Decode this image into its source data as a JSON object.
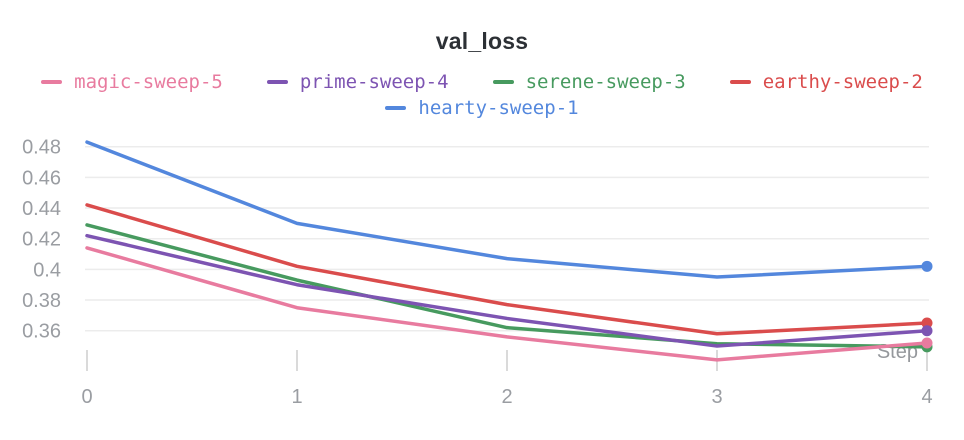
{
  "title": "val_loss",
  "colors": {
    "background": "#ffffff",
    "title_text": "#2c3035",
    "grid": "#ececec",
    "tick_mark": "#dadada",
    "axis_text": "#9a9da2",
    "axis_title_text": "#95989c",
    "pink": "#e87b9f",
    "purple": "#7d54b2",
    "green": "#479a5f",
    "red": "#da4c4c",
    "blue": "#5387dd"
  },
  "legend": {
    "rows": [
      [
        {
          "label": "magic-sweep-5",
          "color": "#e87b9f"
        },
        {
          "label": "prime-sweep-4",
          "color": "#7d54b2"
        },
        {
          "label": "serene-sweep-3",
          "color": "#479a5f"
        },
        {
          "label": "earthy-sweep-2",
          "color": "#da4c4c"
        }
      ],
      [
        {
          "label": "hearty-sweep-1",
          "color": "#5387dd"
        }
      ]
    ]
  },
  "chart_data": {
    "type": "line",
    "title": "val_loss",
    "xlabel": "Step",
    "ylabel": "",
    "x": [
      0,
      1,
      2,
      3,
      4
    ],
    "x_ticks": [
      0,
      1,
      2,
      3,
      4
    ],
    "y_ticks": [
      0.48,
      0.46,
      0.44,
      0.42,
      0.4,
      0.38,
      0.36
    ],
    "xlim": [
      0,
      4
    ],
    "ylim": [
      0.333,
      0.491
    ],
    "grid": true,
    "legend_position": "top",
    "series": [
      {
        "name": "magic-sweep-5",
        "color": "#e87b9f",
        "values": [
          0.414,
          0.375,
          0.356,
          0.341,
          0.352
        ]
      },
      {
        "name": "prime-sweep-4",
        "color": "#7d54b2",
        "values": [
          0.422,
          0.39,
          0.368,
          0.35,
          0.36
        ]
      },
      {
        "name": "serene-sweep-3",
        "color": "#479a5f",
        "values": [
          0.429,
          0.393,
          0.362,
          0.3515,
          0.3495
        ]
      },
      {
        "name": "earthy-sweep-2",
        "color": "#da4c4c",
        "values": [
          0.442,
          0.402,
          0.377,
          0.358,
          0.365
        ]
      },
      {
        "name": "hearty-sweep-1",
        "color": "#5387dd",
        "values": [
          0.483,
          0.43,
          0.407,
          0.395,
          0.402
        ]
      }
    ]
  }
}
